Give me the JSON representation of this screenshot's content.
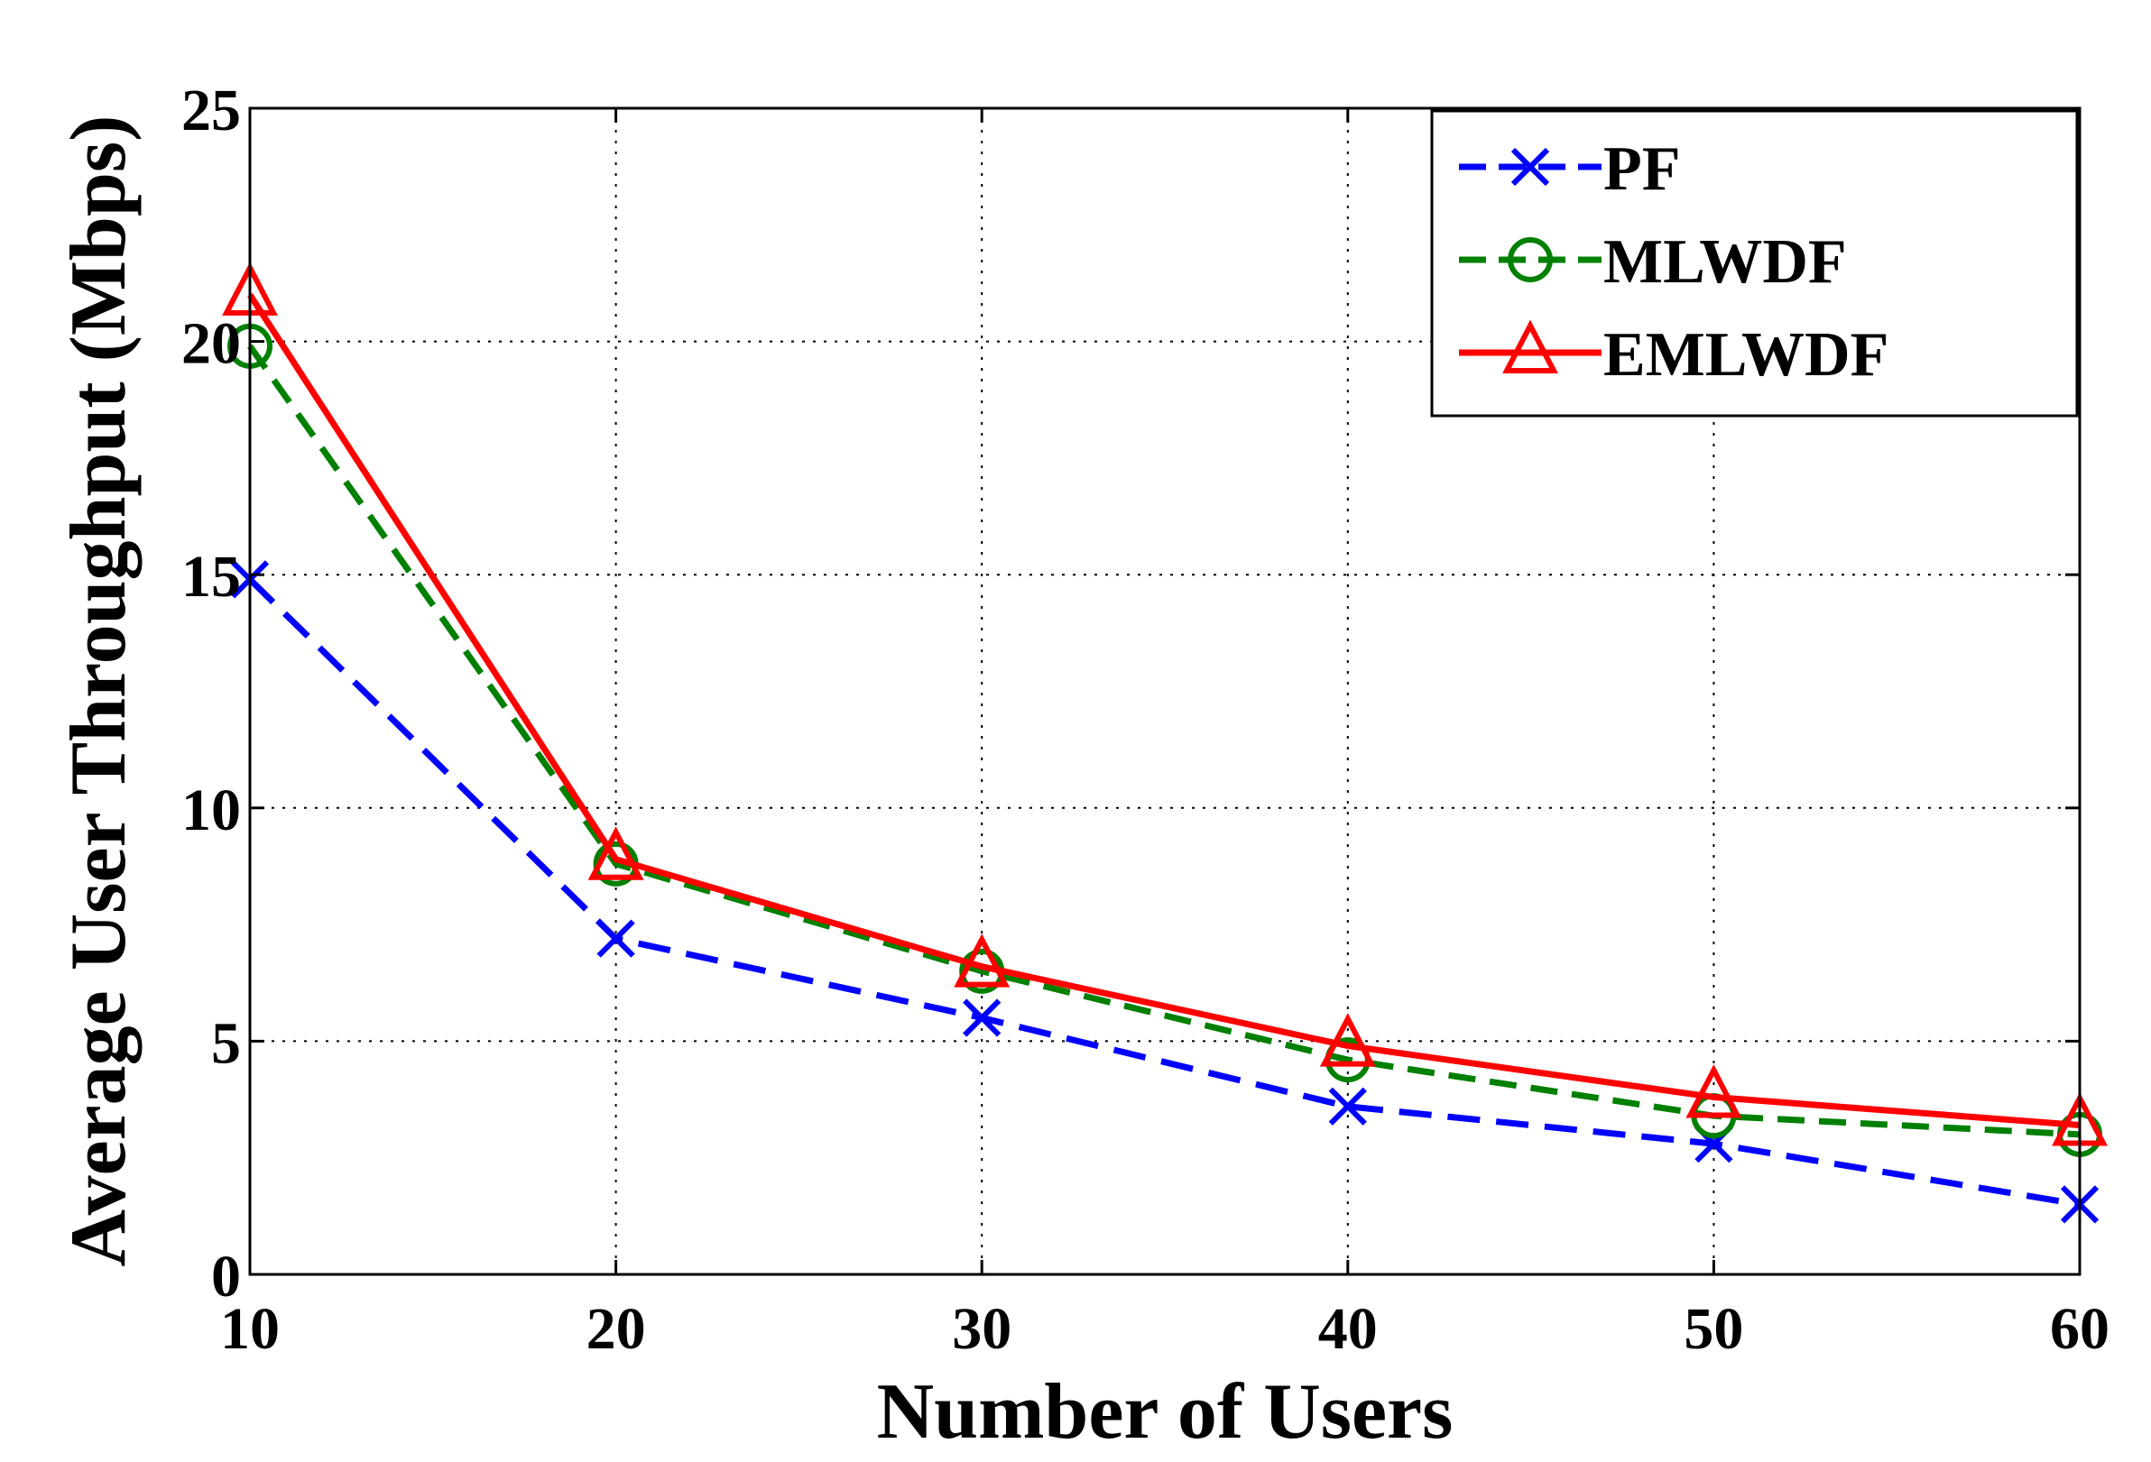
{
  "chart_data": {
    "type": "line",
    "title": "",
    "xlabel": "Number of Users",
    "ylabel": "Average User Throughput (Mbps)",
    "x": [
      10,
      20,
      30,
      40,
      50,
      60
    ],
    "xlim": [
      10,
      60
    ],
    "ylim": [
      0,
      25
    ],
    "xticks": [
      10,
      20,
      30,
      40,
      50,
      60
    ],
    "xtick_labels": [
      "10",
      "20",
      "30",
      "40",
      "50",
      "60"
    ],
    "yticks": [
      0,
      5,
      10,
      15,
      20,
      25
    ],
    "ytick_labels": [
      "0",
      "5",
      "10",
      "15",
      "20",
      "25"
    ],
    "grid": true,
    "legend_position": "top-right",
    "series": [
      {
        "name": "PF",
        "values": [
          14.9,
          7.2,
          5.5,
          3.6,
          2.8,
          1.5
        ],
        "color": "#0000ff",
        "line": "dashed",
        "marker": "x"
      },
      {
        "name": "MLWDF",
        "values": [
          19.9,
          8.8,
          6.5,
          4.6,
          3.4,
          3.0
        ],
        "color": "#008000",
        "line": "dashed",
        "marker": "circle"
      },
      {
        "name": "EMLWDF",
        "values": [
          21.0,
          8.9,
          6.6,
          4.9,
          3.8,
          3.2
        ],
        "color": "#ff0000",
        "line": "solid",
        "marker": "triangle"
      }
    ]
  }
}
